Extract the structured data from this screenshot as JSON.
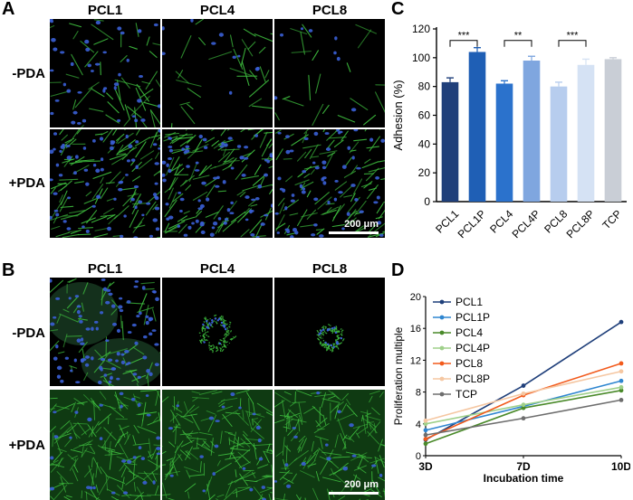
{
  "panels": {
    "A": {
      "letter": "A",
      "columns": [
        "PCL1",
        "PCL4",
        "PCL8"
      ],
      "rows": [
        "-PDA",
        "+PDA"
      ],
      "scale_bar": "200 μm"
    },
    "B": {
      "letter": "B",
      "columns": [
        "PCL1",
        "PCL4",
        "PCL8"
      ],
      "rows": [
        "-PDA",
        "+PDA"
      ],
      "scale_bar": "200 μm"
    },
    "C": {
      "letter": "C"
    },
    "D": {
      "letter": "D"
    }
  },
  "colors": {
    "cell_green": "#3fbf3f",
    "nucleus_blue": "#3a5fd6",
    "image_bg": "#000000"
  },
  "chart_data": [
    {
      "type": "bar",
      "panel": "C",
      "title": "",
      "xlabel": "",
      "ylabel": "Adhesion (%)",
      "categories": [
        "PCL1",
        "PCL1P",
        "PCL4",
        "PCL4P",
        "PCL8",
        "PCL8P",
        "TCP"
      ],
      "values": [
        83,
        104,
        82,
        98,
        80,
        95,
        99
      ],
      "errors": [
        3,
        3,
        2,
        3,
        3,
        4,
        1
      ],
      "bar_colors": [
        "#1f3f7a",
        "#1f5fb5",
        "#2b72cc",
        "#7fa6df",
        "#b7cdee",
        "#d5e2f4",
        "#c9ced6"
      ],
      "ylim": [
        0,
        120
      ],
      "yticks": [
        0,
        20,
        40,
        60,
        80,
        100,
        120
      ],
      "grid": false,
      "significance": [
        {
          "from": 0,
          "to": 1,
          "label": "***",
          "level": 112
        },
        {
          "from": 2,
          "to": 3,
          "label": "**",
          "level": 112
        },
        {
          "from": 4,
          "to": 5,
          "label": "***",
          "level": 112
        }
      ]
    },
    {
      "type": "line",
      "panel": "D",
      "title": "",
      "xlabel": "Incubation time",
      "ylabel": "Proliferation multiple",
      "x": [
        "3D",
        "7D",
        "10D"
      ],
      "ylim": [
        0,
        20
      ],
      "yticks": [
        0,
        4,
        8,
        12,
        16,
        20
      ],
      "grid": false,
      "legend_position": "top-left",
      "series": [
        {
          "name": "PCL1",
          "color": "#1f3f7a",
          "values": [
            2.0,
            8.8,
            16.8
          ]
        },
        {
          "name": "PCL1P",
          "color": "#2f86d0",
          "values": [
            3.2,
            6.2,
            9.4
          ]
        },
        {
          "name": "PCL4",
          "color": "#4a8a2a",
          "values": [
            1.5,
            6.0,
            8.2
          ]
        },
        {
          "name": "PCL4P",
          "color": "#9fd08a",
          "values": [
            4.0,
            6.4,
            8.6
          ]
        },
        {
          "name": "PCL8",
          "color": "#f25a1c",
          "values": [
            2.1,
            7.6,
            11.6
          ]
        },
        {
          "name": "PCL8P",
          "color": "#f5c7a2",
          "values": [
            4.4,
            7.8,
            10.6
          ]
        },
        {
          "name": "TCP",
          "color": "#6e6e6e",
          "values": [
            2.6,
            4.7,
            7.0
          ]
        }
      ]
    }
  ]
}
